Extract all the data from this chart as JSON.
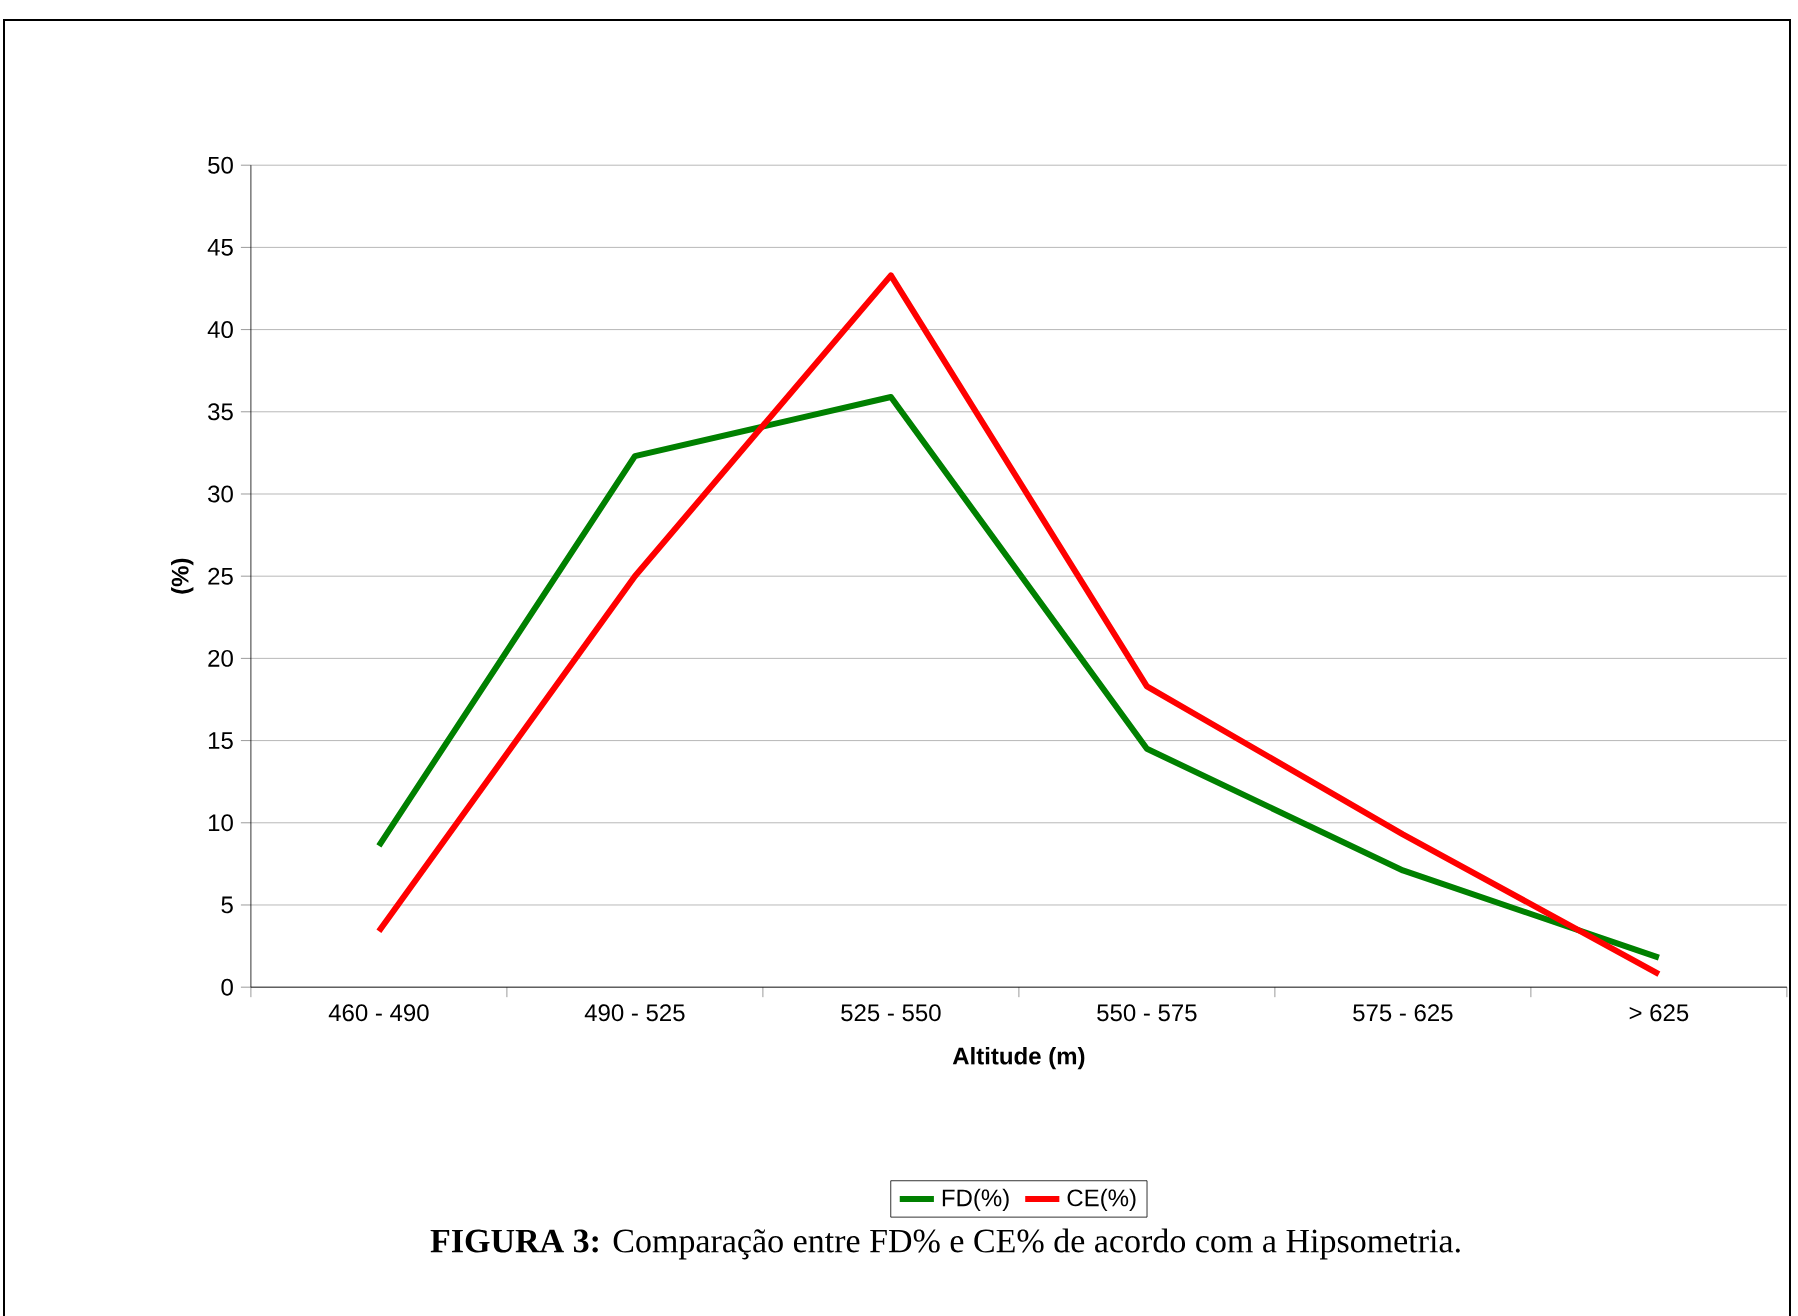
{
  "chart_data": {
    "type": "line",
    "categories": [
      "460 - 490",
      "490 - 525",
      "525 - 550",
      "550 - 575",
      "575 - 625",
      "> 625"
    ],
    "series": [
      {
        "name": "FD(%)",
        "color": "#008000",
        "values": [
          8.6,
          32.3,
          35.9,
          14.5,
          7.1,
          1.8
        ]
      },
      {
        "name": "CE(%)",
        "color": "#ff0000",
        "values": [
          3.4,
          25.0,
          43.3,
          18.3,
          9.3,
          0.8
        ]
      }
    ],
    "xlabel": "Altitude (m)",
    "ylabel": "(%)",
    "ylim": [
      0,
      50
    ],
    "yticks": [
      0,
      5,
      10,
      15,
      20,
      25,
      30,
      35,
      40,
      45,
      50
    ],
    "grid": "y",
    "legend": "bottom",
    "marker": "none",
    "line_style": "solid",
    "annotations": [
      "**FIGURA 3:** Comparação entre FD% e CE% de acordo com a Hipsometria."
    ]
  }
}
